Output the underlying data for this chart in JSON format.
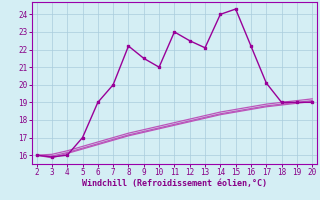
{
  "x": [
    2,
    3,
    4,
    5,
    6,
    7,
    8,
    9,
    10,
    11,
    12,
    13,
    14,
    15,
    16,
    17,
    18,
    19,
    20
  ],
  "y_main": [
    16.0,
    15.9,
    16.0,
    17.0,
    19.0,
    20.0,
    22.2,
    21.5,
    21.0,
    23.0,
    22.5,
    22.1,
    24.0,
    24.3,
    22.2,
    20.1,
    19.0,
    19.0,
    19.0
  ],
  "y_line1": [
    16.0,
    15.85,
    16.1,
    16.35,
    16.6,
    16.85,
    17.1,
    17.3,
    17.5,
    17.7,
    17.9,
    18.1,
    18.3,
    18.45,
    18.6,
    18.75,
    18.85,
    18.95,
    19.05
  ],
  "y_line2": [
    16.0,
    15.95,
    16.15,
    16.4,
    16.65,
    16.9,
    17.15,
    17.35,
    17.55,
    17.75,
    17.95,
    18.15,
    18.35,
    18.5,
    18.65,
    18.8,
    18.9,
    19.0,
    19.1
  ],
  "y_line3": [
    16.0,
    16.05,
    16.25,
    16.5,
    16.75,
    17.0,
    17.25,
    17.45,
    17.65,
    17.85,
    18.05,
    18.25,
    18.45,
    18.6,
    18.75,
    18.9,
    19.0,
    19.1,
    19.2
  ],
  "main_color": "#990099",
  "line_color": "#bb55bb",
  "bg_color": "#d4eef4",
  "grid_color": "#aaccdd",
  "text_color": "#880088",
  "spine_color": "#9900aa",
  "xlabel": "Windchill (Refroidissement éolien,°C)",
  "ylim": [
    15.5,
    24.7
  ],
  "xlim": [
    1.7,
    20.3
  ],
  "yticks": [
    16,
    17,
    18,
    19,
    20,
    21,
    22,
    23,
    24
  ],
  "xticks": [
    2,
    3,
    4,
    5,
    6,
    7,
    8,
    9,
    10,
    11,
    12,
    13,
    14,
    15,
    16,
    17,
    18,
    19,
    20
  ]
}
